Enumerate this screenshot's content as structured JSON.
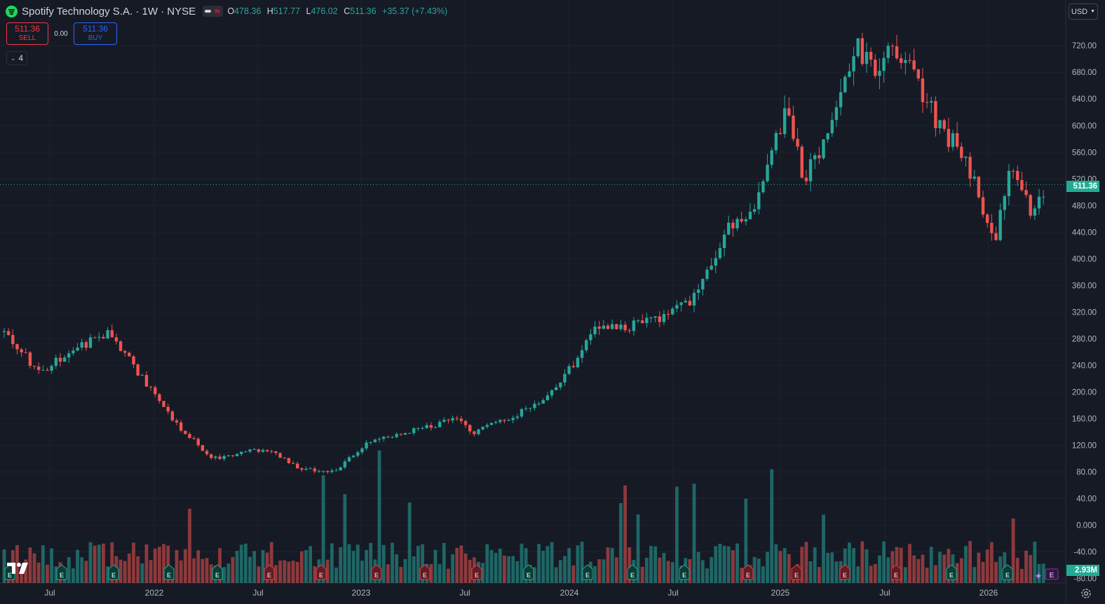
{
  "header": {
    "symbol_title": "Spotify Technology S.A. · 1W · NYSE",
    "open_label": "O",
    "open_value": "478.36",
    "high_label": "H",
    "high_value": "517.77",
    "low_label": "L",
    "low_value": "476.02",
    "close_label": "C",
    "close_value": "511.36",
    "change": "+35.37 (+7.43%)"
  },
  "trade": {
    "sell_price": "511.36",
    "sell_label": "SELL",
    "spread": "0.00",
    "buy_price": "511.36",
    "buy_label": "BUY"
  },
  "indicators_count": "4",
  "currency": "USD",
  "last_price_tag": "511.36",
  "volume_tag": "2.93M",
  "earnings_marker_label": "E",
  "colors": {
    "up": "#26a69a",
    "down": "#ef5350",
    "background": "#161a25",
    "grid": "#1e222d",
    "price_line": "#26a69a"
  },
  "icons": [
    "spotify-logo-icon",
    "chevron-down-icon",
    "settings-icon",
    "tradingview-logo-icon",
    "earnings-icon"
  ],
  "chart_data": {
    "type": "candlestick",
    "title": "Spotify Technology S.A. · 1W · NYSE",
    "timeframe": "1W",
    "x_ticks": [
      "Jul",
      "2022",
      "Jul",
      "2023",
      "Jul",
      "2024",
      "Jul",
      "2025",
      "Jul",
      "2026"
    ],
    "y_ticks": [
      "720.00",
      "680.00",
      "640.00",
      "600.00",
      "560.00",
      "520.00",
      "480.00",
      "440.00",
      "400.00",
      "360.00",
      "320.00",
      "280.00",
      "240.00",
      "200.00",
      "160.00",
      "120.00",
      "80.00",
      "40.00",
      "0.000",
      "-40.00",
      "-80.00"
    ],
    "ylim": [
      -80,
      760
    ],
    "last_price": 511.36,
    "approx_close_path": [
      [
        "2021-05",
        290
      ],
      [
        "2021-07",
        230
      ],
      [
        "2021-09",
        265
      ],
      [
        "2021-11",
        290
      ],
      [
        "2022-01",
        220
      ],
      [
        "2022-03",
        150
      ],
      [
        "2022-05",
        100
      ],
      [
        "2022-08",
        115
      ],
      [
        "2022-10",
        85
      ],
      [
        "2022-12",
        80
      ],
      [
        "2023-02",
        125
      ],
      [
        "2023-05",
        145
      ],
      [
        "2023-07",
        160
      ],
      [
        "2023-08",
        140
      ],
      [
        "2023-10",
        160
      ],
      [
        "2023-12",
        190
      ],
      [
        "2024-02",
        250
      ],
      [
        "2024-03",
        300
      ],
      [
        "2024-05",
        300
      ],
      [
        "2024-07",
        310
      ],
      [
        "2024-09",
        350
      ],
      [
        "2024-11",
        460
      ],
      [
        "2024-12",
        470
      ],
      [
        "2025-01",
        560
      ],
      [
        "2025-02",
        620
      ],
      [
        "2025-03",
        520
      ],
      [
        "2025-04",
        560
      ],
      [
        "2025-05",
        640
      ],
      [
        "2025-06",
        720
      ],
      [
        "2025-07",
        690
      ],
      [
        "2025-08",
        710
      ],
      [
        "2025-09",
        700
      ],
      [
        "2025-10",
        640
      ],
      [
        "2025-11",
        590
      ],
      [
        "2025-12",
        570
      ],
      [
        "2026-01",
        500
      ],
      [
        "2026-02",
        430
      ],
      [
        "2026-03",
        540
      ],
      [
        "2026-04",
        475
      ],
      [
        "2026-05",
        511
      ]
    ],
    "volume_panel": {
      "last_volume": "2.93M",
      "visible_range_label": "volume bars"
    }
  }
}
